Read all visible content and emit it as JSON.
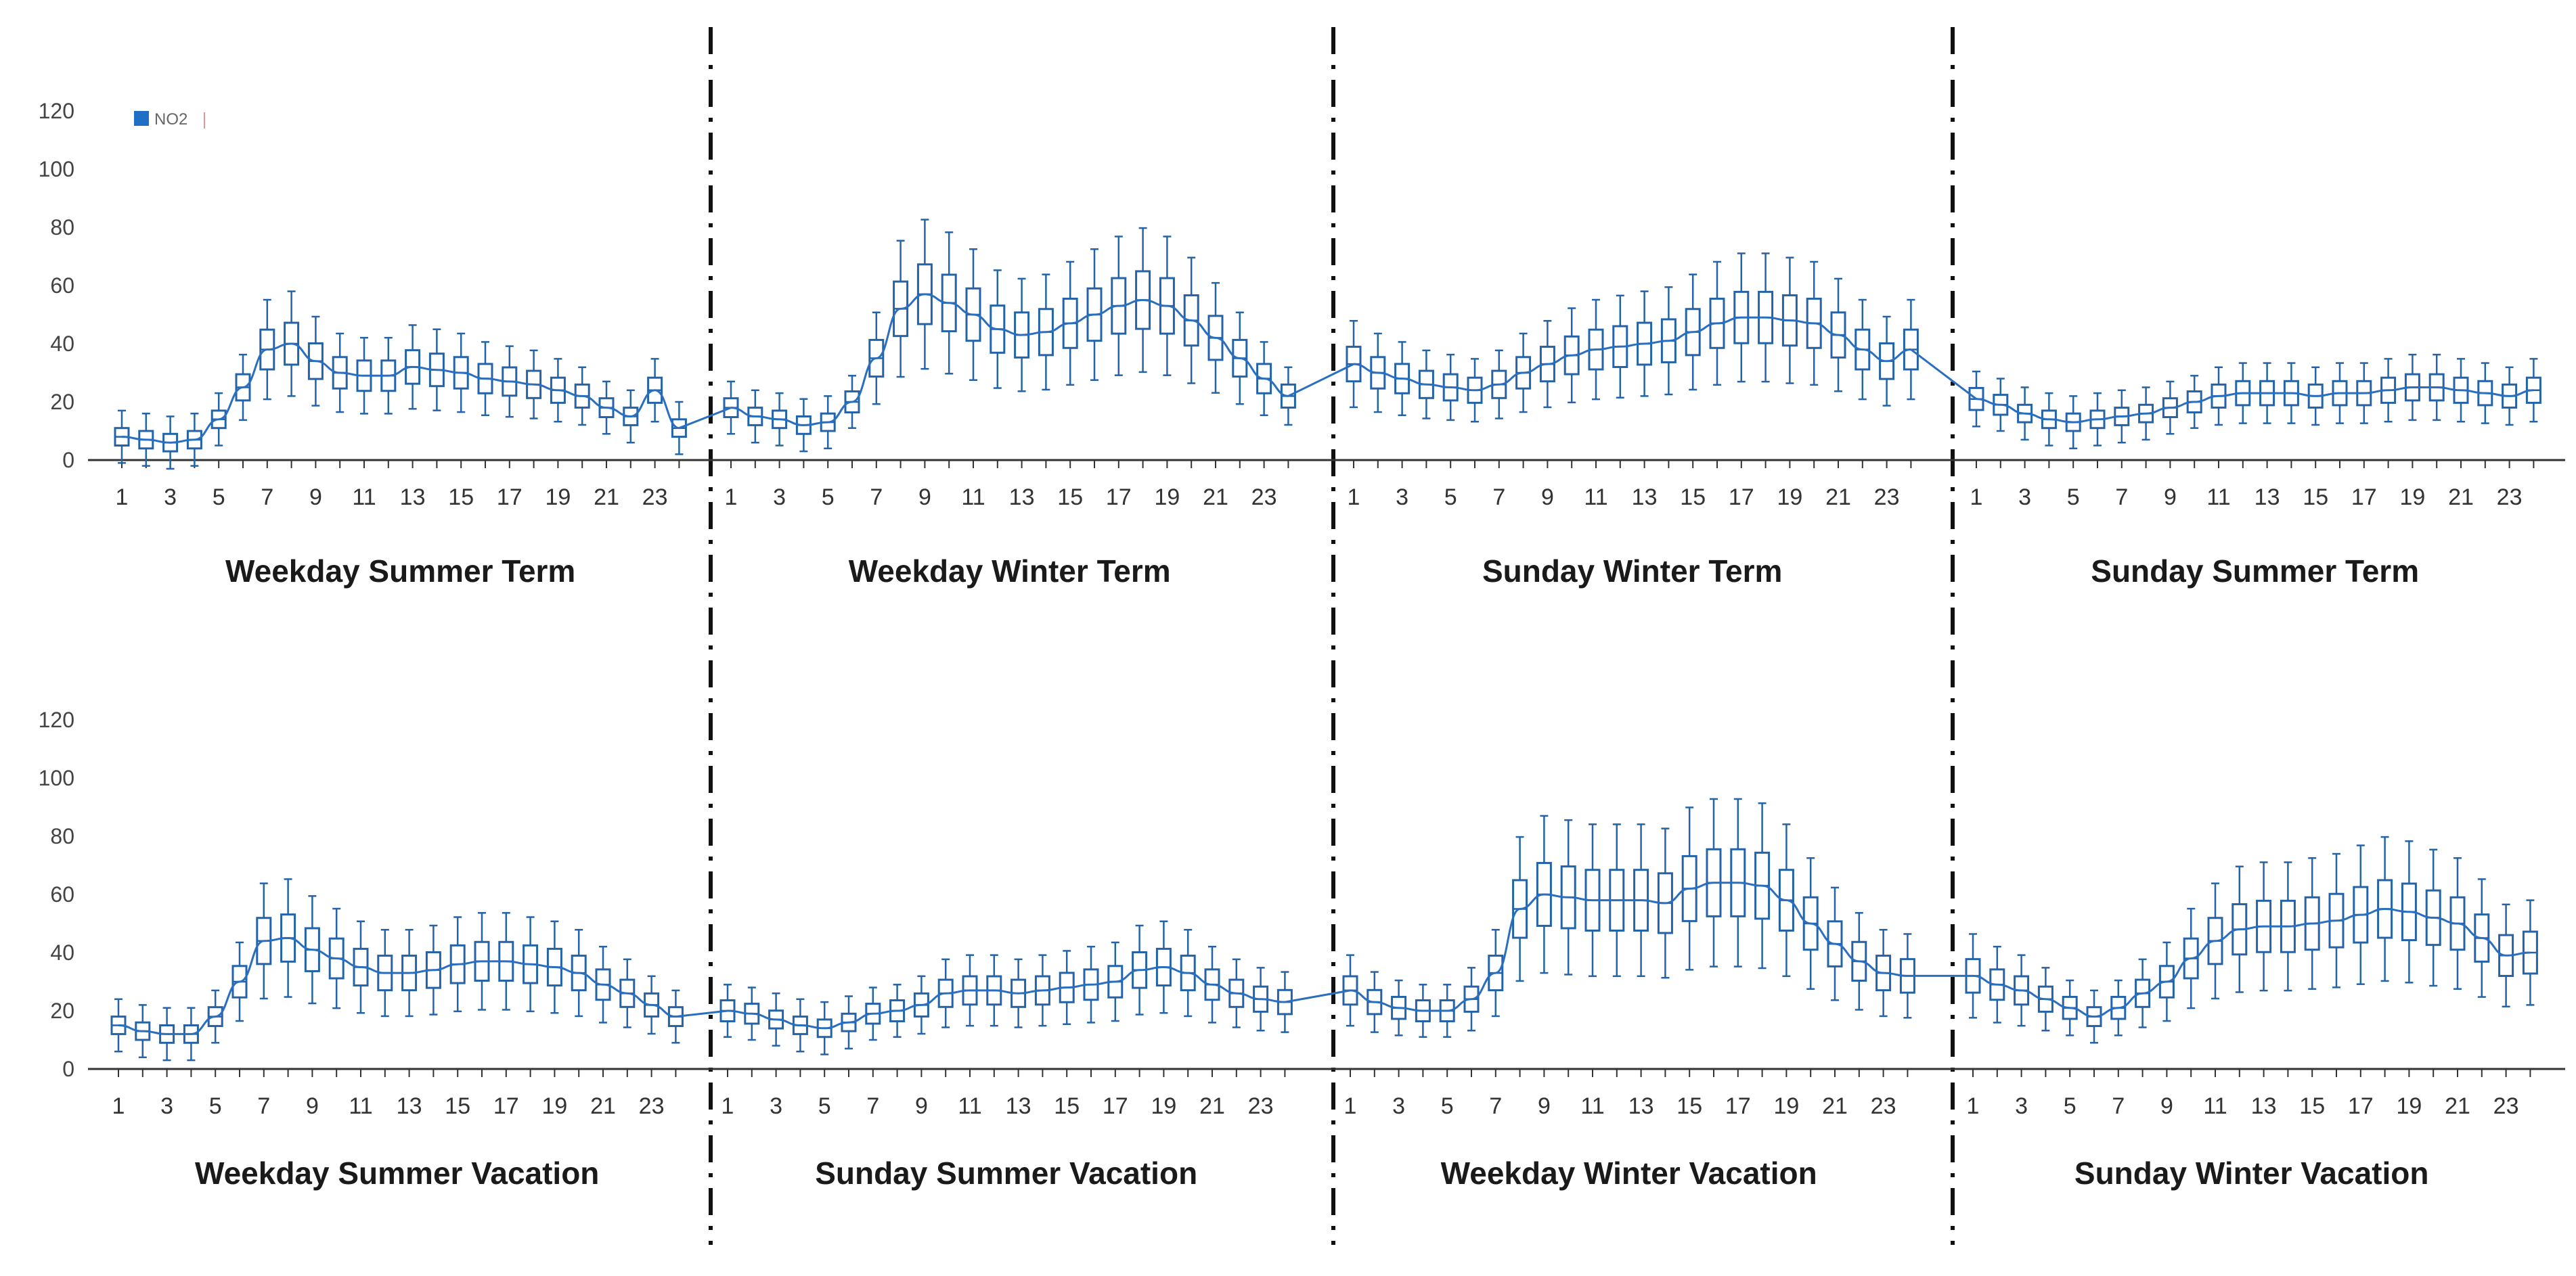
{
  "chart_data": {
    "type": "boxplot",
    "series_name": "NO2",
    "legend": {
      "label": "NO2",
      "color": "#1f6fc5",
      "position": "top-left"
    },
    "colors": {
      "box": "#2563a8",
      "line": "#2a6fbf",
      "axis": "#333333",
      "divider": "#111111"
    },
    "y_ticks": [
      "0",
      "20",
      "40",
      "60",
      "80",
      "100",
      "120"
    ],
    "ylim": [
      0,
      120
    ],
    "hours": [
      1,
      2,
      3,
      4,
      5,
      6,
      7,
      8,
      9,
      10,
      11,
      12,
      13,
      14,
      15,
      16,
      17,
      18,
      19,
      20,
      21,
      22,
      23,
      24
    ],
    "x_tick_labels": [
      "1",
      "3",
      "5",
      "7",
      "9",
      "11",
      "13",
      "15",
      "17",
      "19",
      "21",
      "23"
    ],
    "rows": [
      {
        "panels": [
          {
            "title": "Weekday Summer Term",
            "medians": [
              8,
              7,
              6,
              7,
              14,
              25,
              38,
              40,
              34,
              30,
              29,
              29,
              32,
              31,
              30,
              28,
              27,
              26,
              24,
              22,
              18,
              15,
              24,
              11
            ]
          },
          {
            "title": "Weekday Winter Term",
            "medians": [
              18,
              15,
              14,
              12,
              13,
              20,
              35,
              52,
              57,
              54,
              50,
              45,
              43,
              44,
              47,
              50,
              53,
              55,
              53,
              48,
              42,
              35,
              28,
              22
            ]
          },
          {
            "title": "Sunday Winter Term",
            "medians": [
              33,
              30,
              28,
              26,
              25,
              24,
              26,
              30,
              33,
              36,
              38,
              39,
              40,
              41,
              44,
              47,
              49,
              49,
              48,
              47,
              43,
              38,
              34,
              38
            ]
          },
          {
            "title": "Sunday Summer Term",
            "medians": [
              21,
              19,
              16,
              14,
              13,
              14,
              15,
              16,
              18,
              20,
              22,
              23,
              23,
              23,
              22,
              23,
              23,
              24,
              25,
              25,
              24,
              23,
              22,
              24
            ]
          }
        ]
      },
      {
        "panels": [
          {
            "title": "Weekday Summer Vacation",
            "medians": [
              15,
              13,
              12,
              12,
              18,
              30,
              44,
              45,
              41,
              38,
              35,
              33,
              33,
              34,
              36,
              37,
              37,
              36,
              35,
              33,
              29,
              26,
              22,
              18
            ]
          },
          {
            "title": "Sunday Summer Vacation",
            "medians": [
              20,
              19,
              17,
              15,
              14,
              16,
              19,
              20,
              22,
              26,
              27,
              27,
              26,
              27,
              28,
              29,
              30,
              34,
              35,
              33,
              29,
              26,
              24,
              23
            ]
          },
          {
            "title": "Weekday Winter Vacation",
            "medians": [
              27,
              23,
              21,
              20,
              20,
              24,
              33,
              55,
              60,
              59,
              58,
              58,
              58,
              57,
              62,
              64,
              64,
              63,
              58,
              50,
              43,
              37,
              33,
              32
            ]
          },
          {
            "title": "Sunday Winter Vacation",
            "medians": [
              32,
              29,
              27,
              24,
              21,
              18,
              21,
              26,
              30,
              38,
              44,
              48,
              49,
              49,
              50,
              51,
              53,
              55,
              54,
              52,
              50,
              45,
              39,
              40
            ]
          }
        ]
      }
    ]
  }
}
